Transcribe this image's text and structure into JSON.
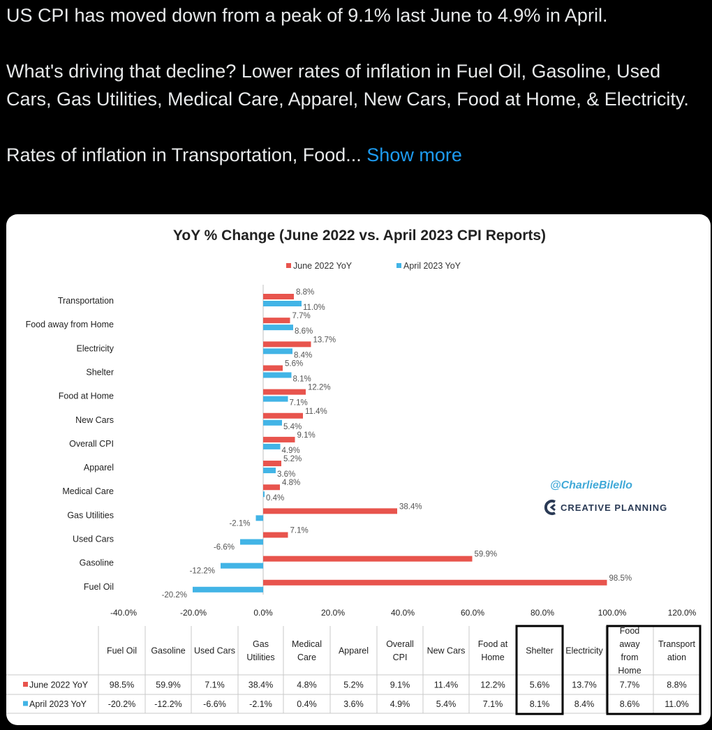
{
  "tweet": {
    "line1": "US CPI has moved down from a peak of 9.1% last June to 4.9% in April.",
    "line2": "What's driving that decline? Lower rates of inflation in Fuel Oil, Gasoline, Used Cars, Gas Utilities, Medical Care, Apparel, New Cars, Food at Home, & Electricity.",
    "line3": "Rates of inflation in Transportation, Food...",
    "show_more": "Show more"
  },
  "watermark": {
    "handle": "@CharlieBilello",
    "brand": "CREATIVE PLANNING"
  },
  "chart_data": {
    "type": "bar",
    "orientation": "horizontal",
    "title": "YoY % Change (June 2022 vs. April 2023 CPI Reports)",
    "categories": [
      "Transportation",
      "Food away from Home",
      "Electricity",
      "Shelter",
      "Food at Home",
      "New Cars",
      "Overall CPI",
      "Apparel",
      "Medical Care",
      "Gas Utilities",
      "Used Cars",
      "Gasoline",
      "Fuel Oil"
    ],
    "series": [
      {
        "name": "June 2022 YoY",
        "color": "#e8544d",
        "values": [
          8.8,
          7.7,
          13.7,
          5.6,
          12.2,
          11.4,
          9.1,
          5.2,
          4.8,
          38.4,
          7.1,
          59.9,
          98.5
        ]
      },
      {
        "name": "April 2023 YoY",
        "color": "#42b4e6",
        "values": [
          11.0,
          8.6,
          8.4,
          8.1,
          7.1,
          5.4,
          4.9,
          3.6,
          0.4,
          -2.1,
          -6.6,
          -12.2,
          -20.2
        ]
      }
    ],
    "xlim": [
      -40,
      120
    ],
    "xticks": [
      "-40.0%",
      "-20.0%",
      "0.0%",
      "20.0%",
      "40.0%",
      "60.0%",
      "80.0%",
      "100.0%",
      "120.0%"
    ],
    "legend": "top",
    "table": {
      "columns": [
        "Fuel Oil",
        "Gasoline",
        "Used Cars",
        "Gas Utilities",
        "Medical Care",
        "Apparel",
        "Overall CPI",
        "New Cars",
        "Food at Home",
        "Shelter",
        "Electricity",
        "Food away from Home",
        "Transportation"
      ],
      "column_lines": [
        [
          "Fuel Oil"
        ],
        [
          "Gasoline"
        ],
        [
          "Used Cars"
        ],
        [
          "Gas",
          "Utilities"
        ],
        [
          "Medical",
          "Care"
        ],
        [
          "Apparel"
        ],
        [
          "Overall",
          "CPI"
        ],
        [
          "New Cars"
        ],
        [
          "Food at",
          "Home"
        ],
        [
          "Shelter"
        ],
        [
          "Electricity"
        ],
        [
          "Food",
          "away",
          "from",
          "Home"
        ],
        [
          "Transport",
          "ation"
        ]
      ],
      "rows": [
        {
          "name": "June 2022 YoY",
          "values": [
            "98.5%",
            "59.9%",
            "7.1%",
            "38.4%",
            "4.8%",
            "5.2%",
            "9.1%",
            "11.4%",
            "12.2%",
            "5.6%",
            "13.7%",
            "7.7%",
            "8.8%"
          ]
        },
        {
          "name": "April 2023 YoY",
          "values": [
            "-20.2%",
            "-12.2%",
            "-6.6%",
            "-2.1%",
            "0.4%",
            "3.6%",
            "4.9%",
            "5.4%",
            "7.1%",
            "8.1%",
            "8.4%",
            "8.6%",
            "11.0%"
          ]
        }
      ]
    }
  }
}
